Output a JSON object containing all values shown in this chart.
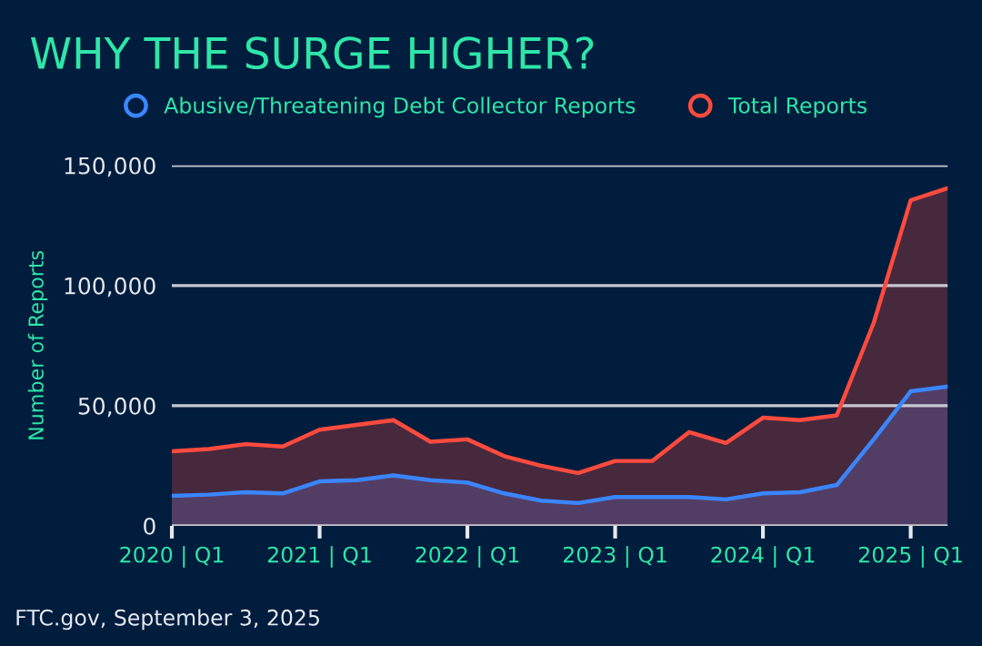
{
  "chart_data": {
    "type": "area",
    "title": "WHY THE SURGE HIGHER?",
    "ylabel": "Number of Reports",
    "categories": [
      "2020 | Q1",
      null,
      null,
      null,
      "2021 | Q1",
      null,
      null,
      null,
      "2022 | Q1",
      null,
      null,
      null,
      "2023 | Q1",
      null,
      null,
      null,
      "2024 | Q1",
      null,
      null,
      null,
      "2025 | Q1",
      null
    ],
    "series": [
      {
        "name": "Abusive/Threatening Debt Collector Reports",
        "color": "#3a86ff",
        "values": [
          12500,
          13000,
          14000,
          13500,
          18500,
          19000,
          21000,
          19000,
          18000,
          13500,
          10500,
          9500,
          12000,
          12000,
          12000,
          11000,
          13500,
          14000,
          17000,
          36000,
          56000,
          58000
        ]
      },
      {
        "name": "Total Reports",
        "color": "#ff4b3e",
        "values": [
          31000,
          32000,
          34000,
          33000,
          40000,
          42000,
          44000,
          35000,
          36000,
          29000,
          25000,
          22000,
          27000,
          27000,
          39000,
          34500,
          45000,
          44000,
          46000,
          84500,
          135500,
          140500
        ]
      }
    ],
    "ylim": [
      0,
      150000
    ],
    "yticks": [
      0,
      {
        "value": 50000,
        "label": "50,000"
      },
      {
        "value": 100000,
        "label": "100,000"
      },
      {
        "value": 150000,
        "label": "150,000"
      }
    ],
    "grid": "y",
    "legend": "top",
    "annotations": [
      "FTC.gov, September 3, 2025"
    ]
  }
}
